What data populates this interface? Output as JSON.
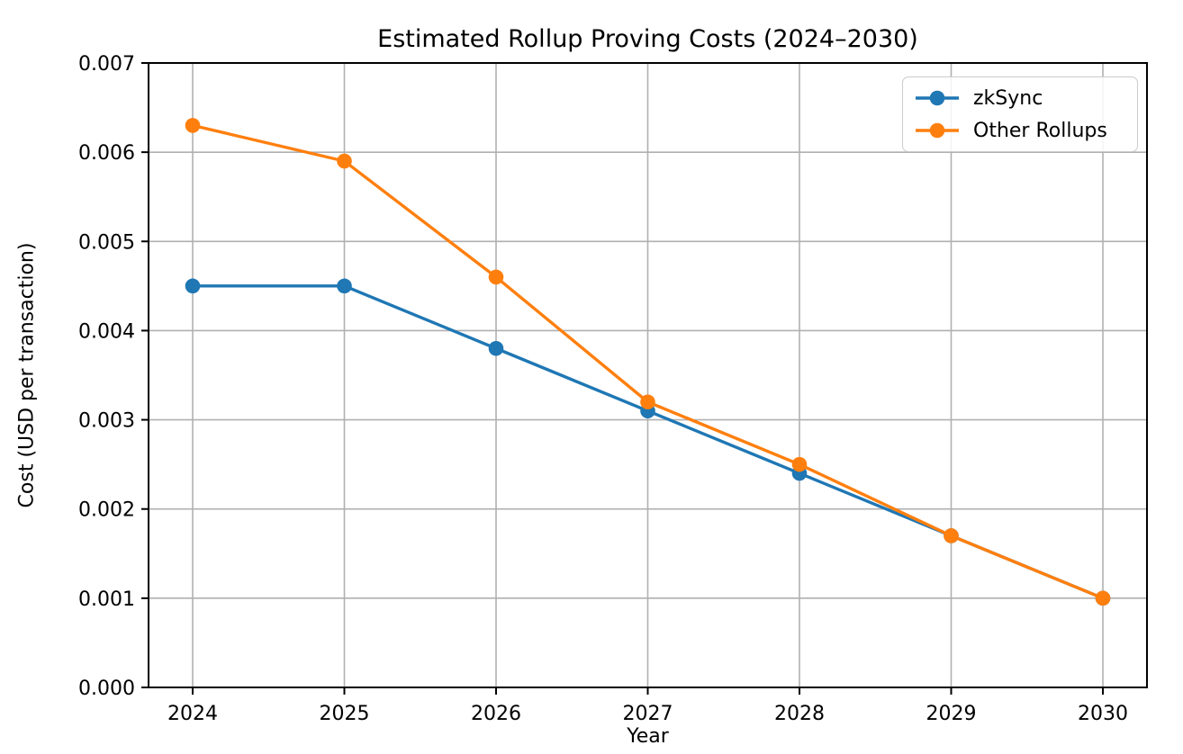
{
  "chart_data": {
    "type": "line",
    "title": "Estimated Rollup Proving Costs (2024–2030)",
    "xlabel": "Year",
    "ylabel": "Cost (USD per transaction)",
    "categories": [
      "2024",
      "2025",
      "2026",
      "2027",
      "2028",
      "2029",
      "2030"
    ],
    "series": [
      {
        "name": "zkSync",
        "color": "#1f77b4",
        "values": [
          0.0045,
          0.0045,
          0.0038,
          0.0031,
          0.0024,
          0.0017,
          0.001
        ]
      },
      {
        "name": "Other Rollups",
        "color": "#ff7f0e",
        "values": [
          0.0063,
          0.0059,
          0.0046,
          0.0032,
          0.0025,
          0.0017,
          0.001
        ]
      }
    ],
    "ylim": [
      0,
      0.007
    ],
    "yticks": [
      "0.000",
      "0.001",
      "0.002",
      "0.003",
      "0.004",
      "0.005",
      "0.006",
      "0.007"
    ],
    "grid": true,
    "marker": "circle",
    "legend_position": "upper right",
    "style": {
      "grid_color": "#b0b0b0",
      "spine_color": "#000000",
      "tick_color": "#000000",
      "background": "#ffffff",
      "legend_border": "#cccccc"
    }
  }
}
